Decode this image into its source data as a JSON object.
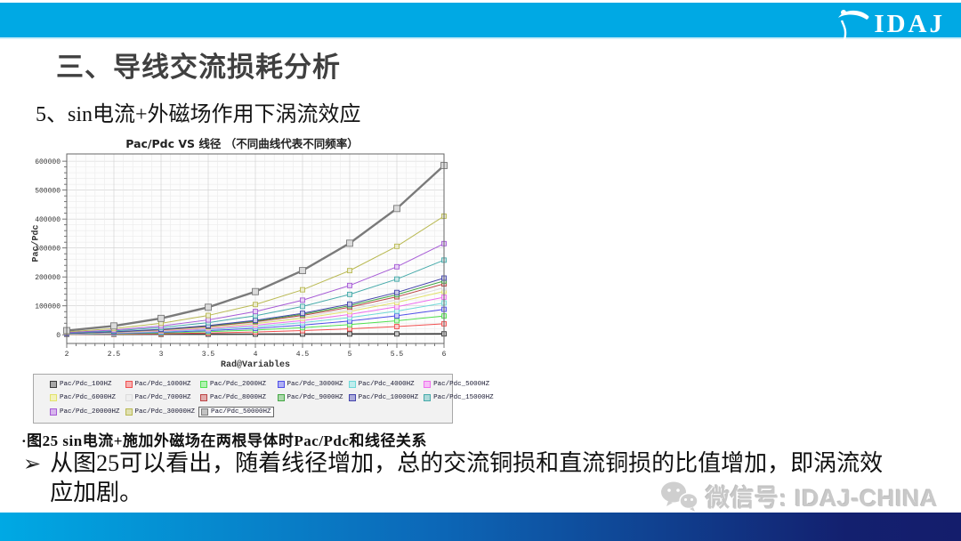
{
  "header": {
    "logo_text": "IDAJ"
  },
  "title": "三、导线交流损耗分析",
  "subtitle": "5、sin电流+外磁场作用下涡流效应",
  "chart_data": {
    "type": "line",
    "title": "Pac/Pdc VS 线径 （不同曲线代表不同频率）",
    "xlabel": "Rad@Variables",
    "ylabel": "Pac/Pdc",
    "x": [
      2,
      2.5,
      3,
      3.5,
      4,
      4.5,
      5,
      5.5,
      6
    ],
    "x_ticks": [
      2,
      2.5,
      3,
      3.5,
      4,
      4.5,
      5,
      5.5,
      6
    ],
    "y_ticks": [
      0,
      100000,
      200000,
      300000,
      400000,
      500000,
      600000
    ],
    "xlim": [
      2,
      6
    ],
    "ylim": [
      0,
      600000
    ],
    "grid": true,
    "legend_position": "bottom",
    "series": [
      {
        "name": "Pac/Pdc_100HZ",
        "color": "#3c3c3c",
        "width": 1.6,
        "values": [
          1500,
          1700,
          1900,
          2100,
          2300,
          2600,
          2800,
          3000,
          3200
        ]
      },
      {
        "name": "Pac/Pdc_1000HZ",
        "color": "#f05050",
        "width": 1,
        "values": [
          950,
          2000,
          3700,
          6200,
          9700,
          14400,
          20600,
          28300,
          38000
        ]
      },
      {
        "name": "Pac/Pdc_2000HZ",
        "color": "#50e050",
        "width": 1,
        "values": [
          1600,
          3400,
          6300,
          10600,
          16600,
          24700,
          35200,
          48500,
          65000
        ]
      },
      {
        "name": "Pac/Pdc_3000HZ",
        "color": "#5050e8",
        "width": 1,
        "values": [
          2200,
          4600,
          8500,
          14300,
          22400,
          33400,
          47600,
          65600,
          88000
        ]
      },
      {
        "name": "Pac/Pdc_4000HZ",
        "color": "#6fd8d8",
        "width": 1,
        "values": [
          2700,
          5800,
          10600,
          17900,
          28100,
          41700,
          59500,
          82000,
          110000
        ]
      },
      {
        "name": "Pac/Pdc_5000HZ",
        "color": "#ee6fee",
        "width": 1,
        "values": [
          3200,
          6800,
          12600,
          21200,
          33200,
          49300,
          70300,
          97000,
          130000
        ]
      },
      {
        "name": "Pac/Pdc_6000HZ",
        "color": "#e2e26a",
        "width": 1,
        "values": [
          3700,
          7800,
          14500,
          24400,
          38300,
          56900,
          81200,
          111900,
          150000
        ]
      },
      {
        "name": "Pac/Pdc_7000HZ",
        "color": "#dcdcdc",
        "width": 1,
        "values": [
          4000,
          8500,
          15700,
          26400,
          41300,
          61400,
          87600,
          120800,
          162000
        ]
      },
      {
        "name": "Pac/Pdc_8000HZ",
        "color": "#bc4444",
        "width": 1,
        "values": [
          4300,
          9200,
          17000,
          28600,
          44900,
          66800,
          95200,
          131300,
          176000
        ]
      },
      {
        "name": "Pac/Pdc_9000HZ",
        "color": "#44a844",
        "width": 1,
        "values": [
          4600,
          9700,
          18000,
          30300,
          47400,
          70600,
          100600,
          138700,
          186000
        ]
      },
      {
        "name": "Pac/Pdc_10000HZ",
        "color": "#4444ac",
        "width": 1,
        "values": [
          4800,
          10300,
          19000,
          31900,
          50000,
          74300,
          106000,
          146200,
          196000
        ]
      },
      {
        "name": "Pac/Pdc_15000HZ",
        "color": "#46aaaa",
        "width": 1,
        "values": [
          6400,
          13500,
          25000,
          42000,
          65800,
          97900,
          139600,
          192400,
          258000
        ]
      },
      {
        "name": "Pac/Pdc_20000HZ",
        "color": "#a65ad6",
        "width": 1,
        "values": [
          7800,
          16500,
          30500,
          51300,
          80300,
          119500,
          170400,
          235000,
          315000
        ]
      },
      {
        "name": "Pac/Pdc_30000HZ",
        "color": "#b9b952",
        "width": 1,
        "values": [
          10100,
          21400,
          39600,
          66700,
          104600,
          155500,
          221800,
          305800,
          410000
        ]
      },
      {
        "name": "Pac/Pdc_50000HZ",
        "color": "#7a7a7a",
        "width": 2.4,
        "selected": true,
        "values": [
          14500,
          30600,
          56600,
          95200,
          149200,
          221900,
          316500,
          436400,
          585000
        ]
      }
    ]
  },
  "caption": "·图25 sin电流+施加外磁场在两根导体时Pac/Pdc和线径关系",
  "bullet": {
    "marker": "➢",
    "text": "从图25可以看出，随着线径增加，总的交流铜损和直流铜损的比值增加，即涡流效应加剧。"
  },
  "footer": {
    "wechat_label": "微信号: IDAJ-CHINA"
  },
  "colors": {
    "header_bar": "#00a9e4",
    "footer_gradient_left": "#00a9e4",
    "footer_gradient_right": "#141d6c",
    "logo_text": "#ffffff",
    "title_text": "#404040"
  }
}
